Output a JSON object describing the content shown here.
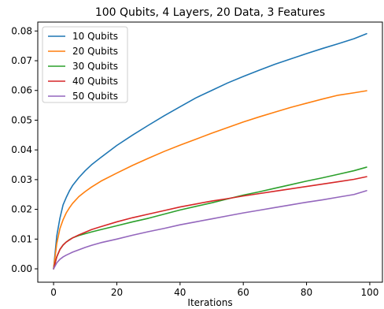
{
  "chart_data": {
    "type": "line",
    "title": "100 Qubits, 4 Layers, 20 Data, 3 Features",
    "xlabel": "Iterations",
    "ylabel": "",
    "xlim": [
      -5,
      104
    ],
    "ylim": [
      -0.0045,
      0.083
    ],
    "x_ticks": [
      0,
      20,
      40,
      60,
      80,
      100
    ],
    "y_ticks": [
      0.0,
      0.01,
      0.02,
      0.03,
      0.04,
      0.05,
      0.06,
      0.07,
      0.08
    ],
    "x_tick_labels": [
      "0",
      "20",
      "40",
      "60",
      "80",
      "100"
    ],
    "y_tick_labels": [
      "0.00",
      "0.01",
      "0.02",
      "0.03",
      "0.04",
      "0.05",
      "0.06",
      "0.07",
      "0.08"
    ],
    "grid": false,
    "legend_position": "top-left",
    "x": [
      0,
      1,
      2,
      3,
      4,
      5,
      6,
      8,
      10,
      12,
      15,
      20,
      25,
      30,
      35,
      40,
      45,
      50,
      55,
      60,
      65,
      70,
      75,
      80,
      85,
      90,
      95,
      99
    ],
    "series": [
      {
        "name": "10 Qubits",
        "color": "#1f77b4",
        "values": [
          0.0,
          0.011,
          0.017,
          0.0215,
          0.024,
          0.0262,
          0.028,
          0.0307,
          0.033,
          0.035,
          0.0375,
          0.0415,
          0.045,
          0.0483,
          0.0515,
          0.0545,
          0.0575,
          0.06,
          0.0625,
          0.0647,
          0.0668,
          0.0688,
          0.0706,
          0.0724,
          0.0741,
          0.0757,
          0.0774,
          0.0791
        ]
      },
      {
        "name": "20 Qubits",
        "color": "#ff7f0e",
        "values": [
          0.0,
          0.0085,
          0.0135,
          0.0165,
          0.0188,
          0.0205,
          0.022,
          0.0243,
          0.026,
          0.0275,
          0.0295,
          0.0322,
          0.0348,
          0.0372,
          0.0395,
          0.0416,
          0.0436,
          0.0456,
          0.0475,
          0.0494,
          0.0511,
          0.0527,
          0.0543,
          0.0557,
          0.0571,
          0.0584,
          0.0592,
          0.0599
        ]
      },
      {
        "name": "30 Qubits",
        "color": "#2ca02c",
        "values": [
          0.0,
          0.004,
          0.0065,
          0.008,
          0.009,
          0.0098,
          0.0104,
          0.0112,
          0.0118,
          0.0124,
          0.0132,
          0.0145,
          0.0158,
          0.017,
          0.0184,
          0.0198,
          0.021,
          0.0222,
          0.0235,
          0.0248,
          0.0259,
          0.0271,
          0.0283,
          0.0295,
          0.0306,
          0.0318,
          0.033,
          0.0342
        ]
      },
      {
        "name": "40 Qubits",
        "color": "#d62728",
        "values": [
          0.0,
          0.004,
          0.0065,
          0.008,
          0.009,
          0.0097,
          0.0104,
          0.0114,
          0.0123,
          0.0132,
          0.0142,
          0.0158,
          0.0172,
          0.0184,
          0.0196,
          0.0208,
          0.0218,
          0.0228,
          0.0236,
          0.0245,
          0.0253,
          0.0261,
          0.0269,
          0.0277,
          0.0285,
          0.0293,
          0.0301,
          0.031
        ]
      },
      {
        "name": "50 Qubits",
        "color": "#9467bd",
        "values": [
          0.0,
          0.002,
          0.0032,
          0.004,
          0.0046,
          0.0051,
          0.0056,
          0.0064,
          0.0072,
          0.0079,
          0.0088,
          0.01,
          0.0113,
          0.0125,
          0.0136,
          0.0148,
          0.0158,
          0.0168,
          0.0178,
          0.0188,
          0.0197,
          0.0206,
          0.0215,
          0.0224,
          0.0232,
          0.0241,
          0.025,
          0.0263
        ]
      }
    ]
  }
}
